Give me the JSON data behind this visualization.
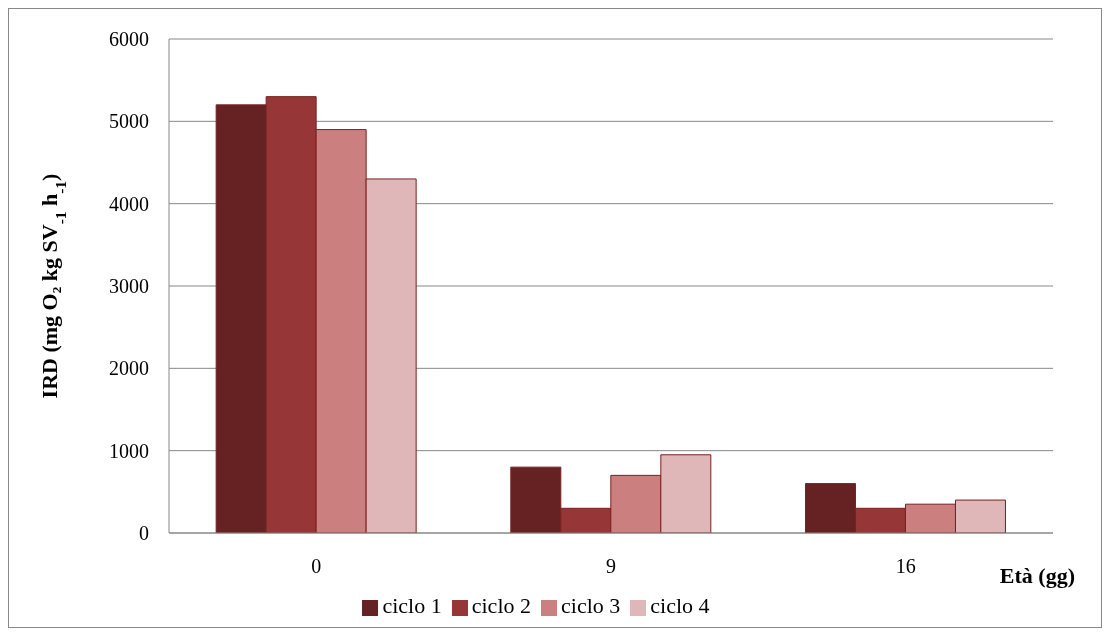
{
  "chart_data": {
    "type": "bar",
    "xlabel": "Età (gg)",
    "ylabel": "IRD (mg O₂ kg SV$_{-1}$ h$_{-1}$)",
    "categories": [
      "0",
      "9",
      "16"
    ],
    "series": [
      {
        "name": "ciclo 1",
        "color": "#662222",
        "values": [
          5200,
          800,
          600
        ]
      },
      {
        "name": "ciclo 2",
        "color": "#963636",
        "values": [
          5300,
          300,
          300
        ]
      },
      {
        "name": "ciclo 3",
        "color": "#cc7f7f",
        "values": [
          4900,
          700,
          350
        ]
      },
      {
        "name": "ciclo 4",
        "color": "#dfb7b8",
        "values": [
          4300,
          950,
          400
        ]
      }
    ],
    "ylim": [
      0,
      6000
    ],
    "yticks": [
      0,
      1000,
      2000,
      3000,
      4000,
      5000,
      6000
    ],
    "grid": "y",
    "legend": "bottom"
  }
}
